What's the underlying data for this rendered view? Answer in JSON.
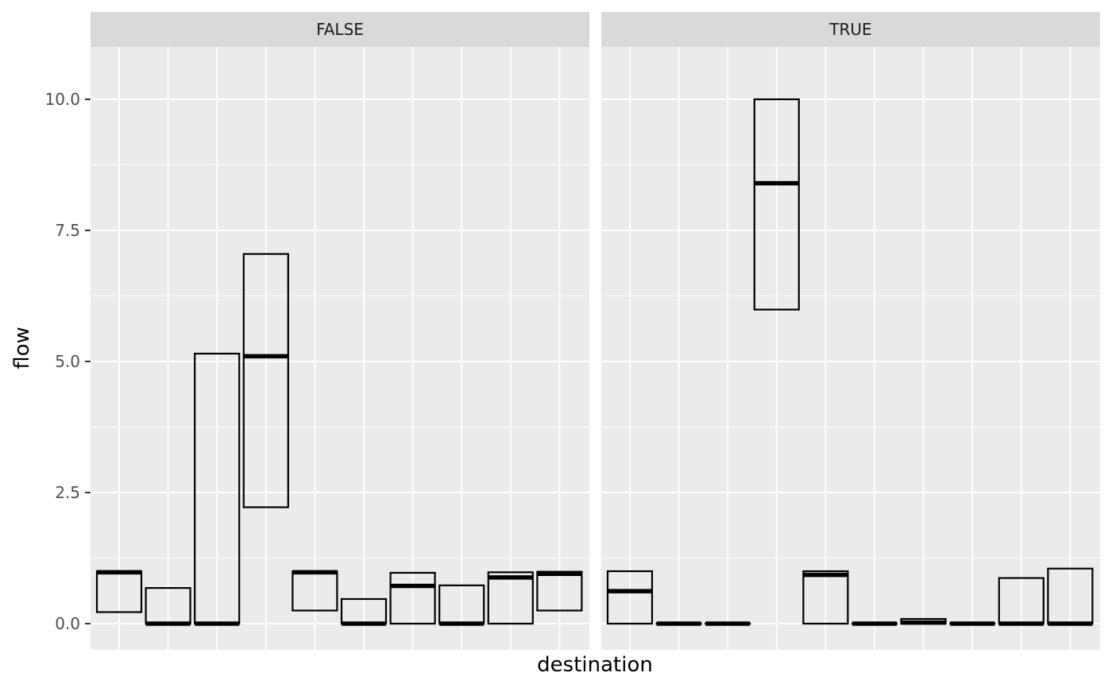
{
  "chart_data": {
    "type": "crossbar",
    "facet_labels": [
      "FALSE",
      "TRUE"
    ],
    "xlabel": "destination",
    "ylabel": "flow",
    "ylim": [
      -0.5,
      11.0
    ],
    "y_ticks": [
      0.0,
      2.5,
      5.0,
      7.5,
      10.0
    ],
    "y_tick_labels": [
      "0.0",
      "2.5",
      "5.0",
      "7.5",
      "10.0"
    ],
    "n_categories": 10,
    "x_tick_labels_shown": false,
    "grid": true,
    "panels": [
      {
        "facet": "FALSE",
        "boxes": [
          {
            "lower": 0.22,
            "middle": 0.98,
            "upper": 1.0
          },
          {
            "lower": 0.0,
            "middle": 0.0,
            "upper": 0.68
          },
          {
            "lower": 0.0,
            "middle": 0.0,
            "upper": 5.15
          },
          {
            "lower": 2.22,
            "middle": 5.1,
            "upper": 7.05
          },
          {
            "lower": 0.25,
            "middle": 0.98,
            "upper": 1.0
          },
          {
            "lower": 0.0,
            "middle": 0.0,
            "upper": 0.47
          },
          {
            "lower": 0.0,
            "middle": 0.72,
            "upper": 0.97
          },
          {
            "lower": 0.0,
            "middle": 0.0,
            "upper": 0.73
          },
          {
            "lower": 0.0,
            "middle": 0.88,
            "upper": 0.98
          },
          {
            "lower": 0.25,
            "middle": 0.95,
            "upper": 0.99
          }
        ]
      },
      {
        "facet": "TRUE",
        "boxes": [
          {
            "lower": 0.0,
            "middle": 0.62,
            "upper": 1.0
          },
          {
            "lower": 0.0,
            "middle": 0.0,
            "upper": 0.0
          },
          {
            "lower": 0.0,
            "middle": 0.0,
            "upper": 0.0
          },
          {
            "lower": 5.99,
            "middle": 8.4,
            "upper": 10.0
          },
          {
            "lower": 0.0,
            "middle": 0.93,
            "upper": 1.0
          },
          {
            "lower": 0.0,
            "middle": 0.0,
            "upper": 0.0
          },
          {
            "lower": 0.0,
            "middle": 0.02,
            "upper": 0.09
          },
          {
            "lower": 0.0,
            "middle": 0.0,
            "upper": 0.0
          },
          {
            "lower": 0.0,
            "middle": 0.0,
            "upper": 0.87
          },
          {
            "lower": 0.0,
            "middle": 0.0,
            "upper": 1.05
          }
        ]
      }
    ]
  }
}
